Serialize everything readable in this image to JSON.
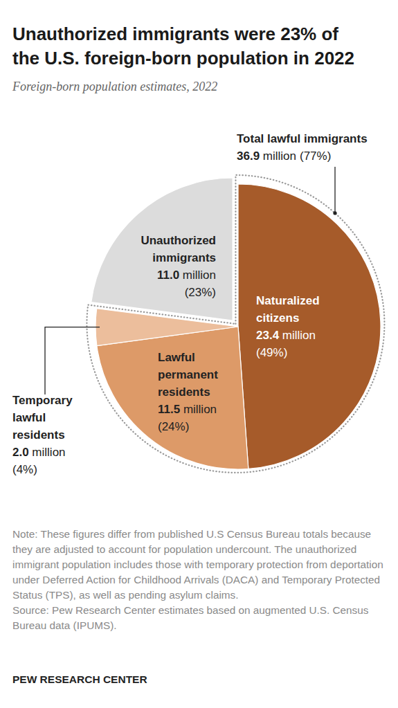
{
  "chart_data": {
    "type": "pie",
    "title": [
      "Unauthorized immigrants were 23% of",
      "the U.S. foreign-born population in 2022"
    ],
    "subtitle": "Foreign-born population estimates, 2022",
    "categories": [
      "Naturalized citizens",
      "Lawful permanent residents",
      "Temporary lawful residents",
      "Unauthorized immigrants"
    ],
    "values": [
      23.4,
      11.5,
      2.0,
      11.0
    ],
    "value_labels": [
      "23.4 million",
      "11.5 million",
      "2.0 million",
      "11.0 million"
    ],
    "percents": [
      49,
      24,
      4,
      23
    ],
    "percent_labels": [
      "(49%)",
      "(24%)",
      "(4%)",
      "(23%)"
    ],
    "colors": [
      "#a65b2a",
      "#dd9a68",
      "#ecbe9c",
      "#dcdcdc"
    ],
    "data_labels": true,
    "groups": [
      {
        "label": "Total lawful immigrants",
        "value": 36.9,
        "value_label": "36.9 million",
        "percent": 77,
        "percent_label": "(77%)",
        "members": [
          0,
          1,
          2
        ]
      }
    ],
    "note": "Note: These figures differ from published U.S Census Bureau totals because they are adjusted to account for population undercount. The unauthorized immigrant population includes those with temporary protection from deportation under Deferred Action for Childhood Arrivals (DACA) and Temporary Protected Status (TPS), as well as pending asylum claims.",
    "source": "Source: Pew Research Center estimates based on augmented U.S. Census Bureau data (IPUMS).",
    "credit": "PEW RESEARCH CENTER"
  }
}
